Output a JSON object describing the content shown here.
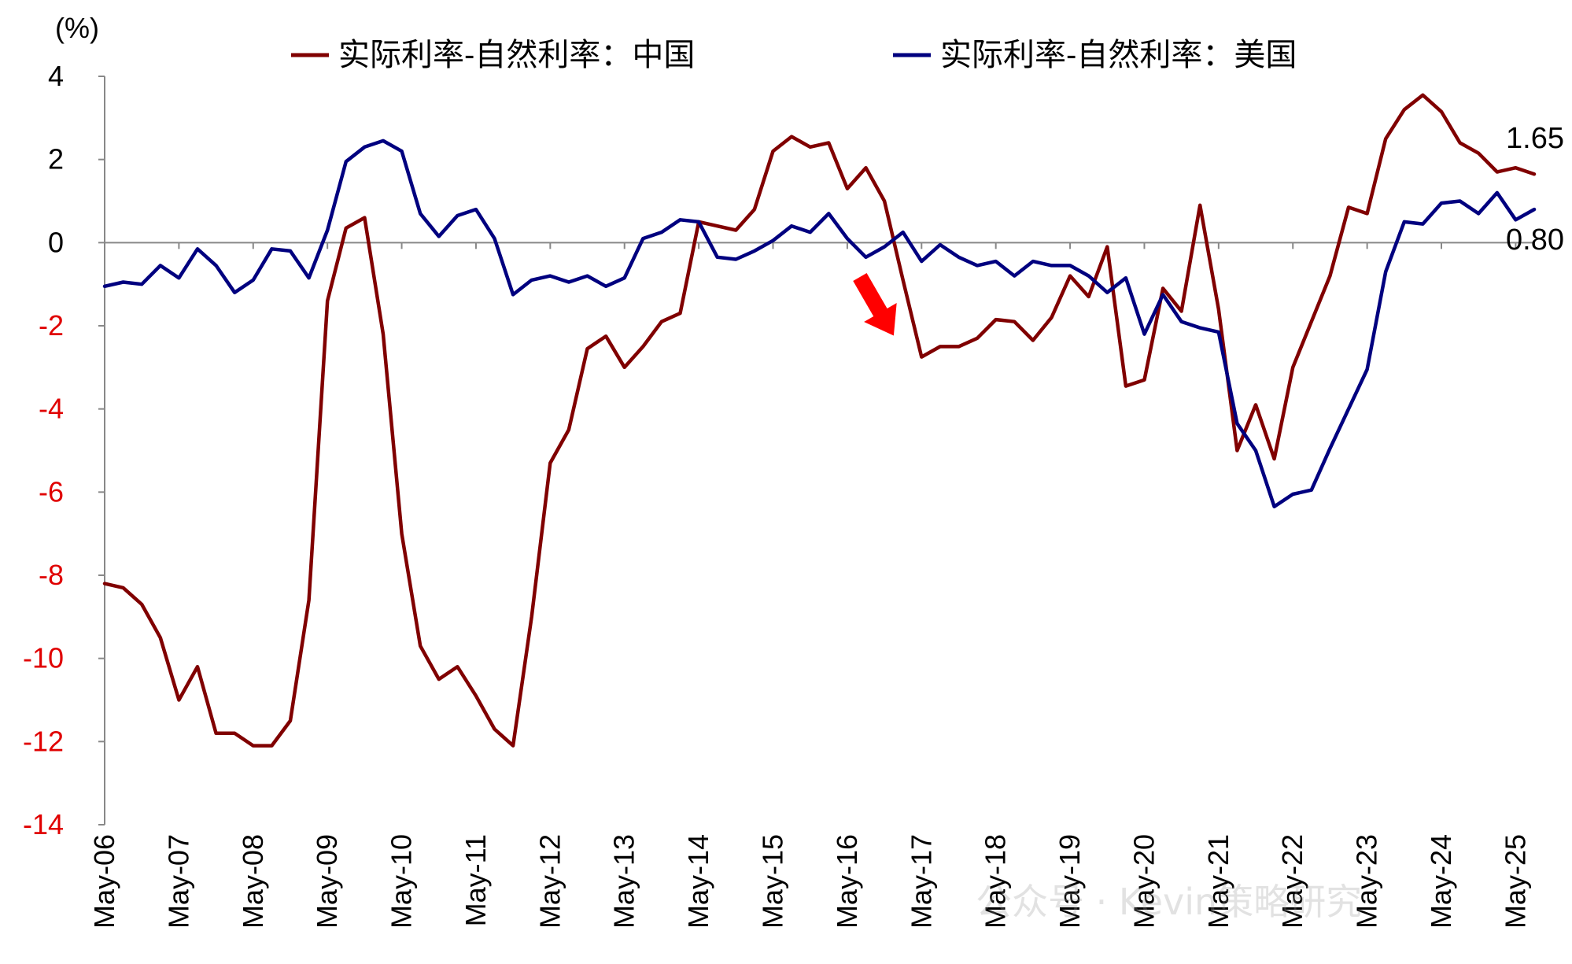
{
  "chart_data": {
    "type": "line",
    "unit_label": "(%)",
    "ylim": [
      -14,
      4
    ],
    "yticks": [
      4,
      2,
      0,
      -2,
      -4,
      -6,
      -8,
      -10,
      -12,
      -14
    ],
    "colors": {
      "positive_tick": "#000000",
      "negative_tick": "#e00000",
      "china": "#800000",
      "usa": "#00007f",
      "arrow": "#ff0000"
    },
    "x_start": 2006.333,
    "x_step": 0.25,
    "xticks": [
      "May-06",
      "May-07",
      "May-08",
      "May-09",
      "May-10",
      "May-11",
      "May-12",
      "May-13",
      "May-14",
      "May-15",
      "May-16",
      "May-17",
      "May-18",
      "May-19",
      "May-20",
      "May-21",
      "May-22",
      "May-23",
      "May-24",
      "May-25"
    ],
    "series": [
      {
        "name": "实际利率-自然利率：中国",
        "key": "china",
        "values": [
          -8.2,
          -8.3,
          -8.7,
          -9.5,
          -11.0,
          -10.2,
          -11.8,
          -11.8,
          -12.1,
          -12.1,
          -11.5,
          -8.6,
          -1.4,
          0.35,
          0.6,
          -2.2,
          -7.0,
          -9.7,
          -10.5,
          -10.2,
          -10.9,
          -11.7,
          -12.1,
          -9.0,
          -5.3,
          -4.5,
          -2.55,
          -2.25,
          -3.0,
          -2.5,
          -1.9,
          -1.7,
          0.5,
          0.4,
          0.3,
          0.8,
          2.2,
          2.55,
          2.3,
          2.4,
          1.3,
          1.8,
          1.0,
          -0.9,
          -2.75,
          -2.5,
          -2.5,
          -2.3,
          -1.85,
          -1.9,
          -2.35,
          -1.8,
          -0.8,
          -1.3,
          -0.1,
          -3.45,
          -3.3,
          -1.1,
          -1.65,
          0.9,
          -1.6,
          -5.0,
          -3.9,
          -5.2,
          -3.0,
          -1.9,
          -0.8,
          0.85,
          0.7,
          2.5,
          3.2,
          3.55,
          3.15,
          2.4,
          2.15,
          1.7,
          1.8,
          1.65
        ]
      },
      {
        "name": "实际利率-自然利率：美国",
        "key": "usa",
        "values": [
          -1.05,
          -0.95,
          -1.0,
          -0.55,
          -0.85,
          -0.15,
          -0.55,
          -1.2,
          -0.9,
          -0.15,
          -0.2,
          -0.85,
          0.3,
          1.95,
          2.3,
          2.45,
          2.2,
          0.7,
          0.15,
          0.65,
          0.8,
          0.1,
          -1.25,
          -0.9,
          -0.8,
          -0.95,
          -0.8,
          -1.05,
          -0.85,
          0.1,
          0.25,
          0.55,
          0.5,
          -0.35,
          -0.4,
          -0.2,
          0.05,
          0.4,
          0.25,
          0.7,
          0.1,
          -0.35,
          -0.1,
          0.25,
          -0.45,
          -0.05,
          -0.35,
          -0.55,
          -0.45,
          -0.8,
          -0.45,
          -0.55,
          -0.55,
          -0.8,
          -1.2,
          -0.85,
          -2.2,
          -1.25,
          -1.9,
          -2.05,
          -2.15,
          -4.35,
          -5.0,
          -6.35,
          -6.05,
          -5.95,
          -4.95,
          -4.0,
          -3.05,
          -0.7,
          0.5,
          0.45,
          0.95,
          1.0,
          0.7,
          1.2,
          0.55,
          0.8
        ]
      }
    ],
    "end_labels": [
      {
        "series": "china",
        "text": "1.65"
      },
      {
        "series": "usa",
        "text": "0.80"
      }
    ],
    "annotation": {
      "type": "down-arrow",
      "at_x": "May-16",
      "at_y": -2
    },
    "watermark": "公众号 · Kevin策略研究"
  }
}
